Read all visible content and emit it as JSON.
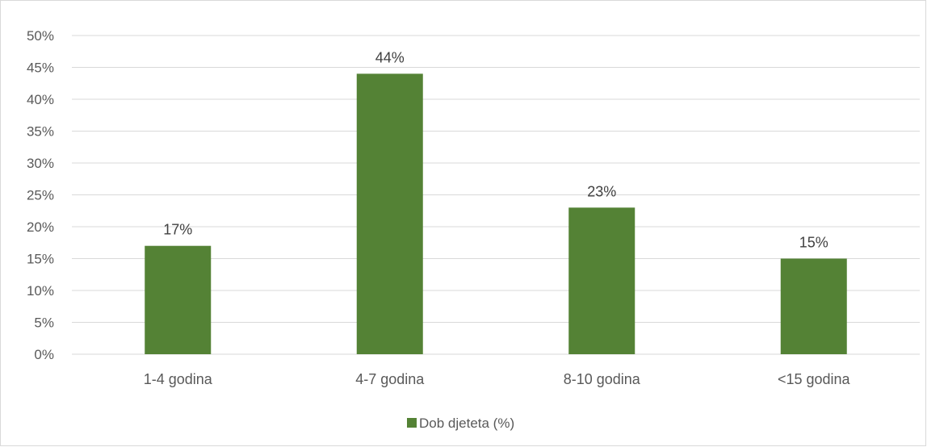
{
  "chart_data": {
    "type": "bar",
    "categories": [
      "1-4 godina",
      "4-7 godina",
      "8-10 godina",
      "<15 godina"
    ],
    "series": [
      {
        "name": "Dob djeteta (%)",
        "values": [
          17,
          44,
          23,
          15
        ],
        "color": "#548235"
      }
    ],
    "data_labels": [
      "17%",
      "44%",
      "23%",
      "15%"
    ],
    "title": "",
    "xlabel": "",
    "ylabel": "",
    "ylim": [
      0,
      50
    ],
    "y_ticks": [
      0,
      5,
      10,
      15,
      20,
      25,
      30,
      35,
      40,
      45,
      50
    ],
    "y_tick_format": "percent",
    "grid": true,
    "legend_position": "bottom"
  }
}
